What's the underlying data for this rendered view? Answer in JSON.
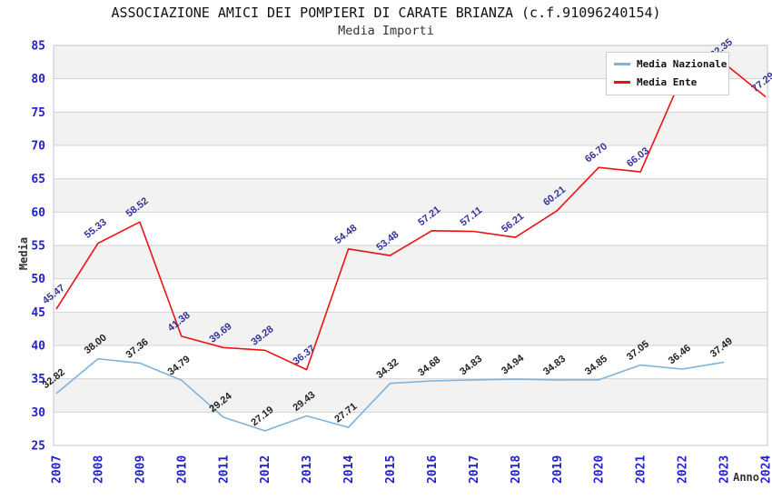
{
  "header": {
    "title": "ASSOCIAZIONE AMICI DEI POMPIERI DI CARATE BRIANZA (c.f.91096240154)",
    "subtitle": "Media Importi"
  },
  "axes": {
    "y_title": "Media",
    "x_title": "Anno"
  },
  "chart_data": {
    "type": "line",
    "title": "ASSOCIAZIONE AMICI DEI POMPIERI DI CARATE BRIANZA (c.f.91096240154)",
    "subtitle": "Media Importi",
    "xlabel": "Anno",
    "ylabel": "Media",
    "categories": [
      "2007",
      "2008",
      "2009",
      "2010",
      "2011",
      "2012",
      "2013",
      "2014",
      "2015",
      "2016",
      "2017",
      "2018",
      "2019",
      "2020",
      "2021",
      "2022",
      "2023",
      "2024"
    ],
    "ylim": [
      25,
      85
    ],
    "y_ticks": [
      25,
      30,
      35,
      40,
      45,
      50,
      55,
      60,
      65,
      70,
      75,
      80,
      85
    ],
    "grid": "horizontal gridlines every 5 units with alternating gray/white bands",
    "legend_position": "top-right",
    "value_label_decimals": 2,
    "series": [
      {
        "name": "Media Nazionale",
        "line_color": "#7fb2dd",
        "label_color": "#222222",
        "values": [
          32.82,
          38.0,
          37.36,
          34.79,
          29.24,
          27.19,
          29.43,
          27.71,
          34.32,
          34.68,
          34.83,
          34.94,
          34.83,
          34.85,
          37.05,
          36.46,
          37.49,
          null
        ]
      },
      {
        "name": "Media Ente",
        "line_color": "#ee1111",
        "label_color": "#333399",
        "values": [
          45.47,
          55.33,
          58.52,
          41.38,
          39.69,
          39.28,
          36.37,
          54.48,
          53.48,
          57.21,
          57.11,
          56.21,
          60.21,
          66.7,
          66.03,
          80.38,
          82.35,
          77.29
        ]
      }
    ],
    "colors": {
      "tick_label": "#2222cc",
      "band_gray": "#f2f2f2",
      "band_white": "#ffffff",
      "gridline": "#d4d4d4",
      "plot_border": "#c4c4c4",
      "axis_title": "#333333"
    }
  }
}
